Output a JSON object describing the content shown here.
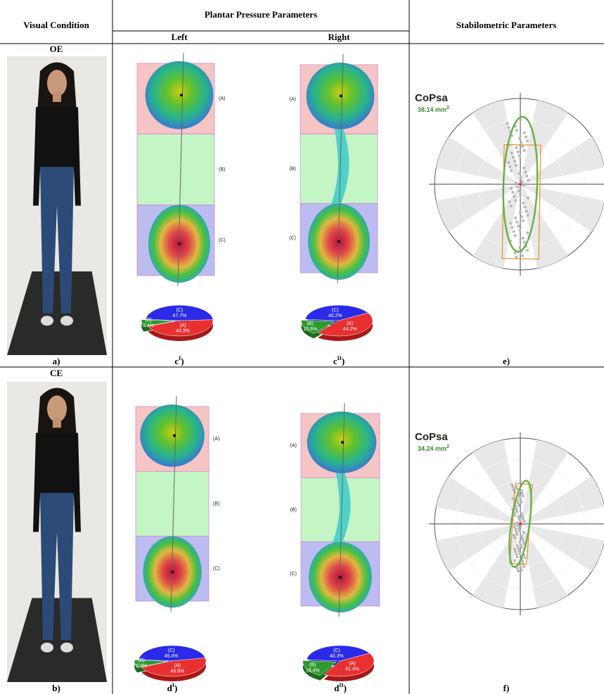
{
  "header": {
    "visual_condition": "Visual Condition",
    "plantar": "Plantar Pressure Parameters",
    "left": "Left",
    "right": "Right",
    "stabilometric": "Stabilometric Parameters"
  },
  "rows": [
    {
      "condition": "OE",
      "photo_label": "a)",
      "feet": [
        {
          "regions": [
            "(A)",
            "(B)",
            "(C)"
          ],
          "pie": [
            {
              "name": "(C)",
              "value": 47.7,
              "value_label": "47.7%"
            },
            {
              "name": "(A)",
              "value": 44.9,
              "value_label": "44.9%"
            },
            {
              "name": "(B)",
              "value": 7.4,
              "value_label": "7.4%"
            }
          ],
          "label": {
            "letter": "c",
            "sup": "I",
            "close": ")"
          }
        },
        {
          "regions": [
            "(A)",
            "(B)",
            "(C)"
          ],
          "pie": [
            {
              "name": "(C)",
              "value": 40.2,
              "value_label": "40.2%"
            },
            {
              "name": "(A)",
              "value": 44.2,
              "value_label": "44.2%"
            },
            {
              "name": "(B)",
              "value": 15.6,
              "value_label": "15.6%"
            }
          ],
          "label": {
            "letter": "c",
            "sup": "II",
            "close": ")"
          }
        }
      ],
      "stabilometry": {
        "title": "CoPsa",
        "value": "38.14 mm",
        "sup": "2",
        "label": "e)"
      }
    },
    {
      "condition": "CE",
      "photo_label": "b)",
      "feet": [
        {
          "regions": [
            "(A)",
            "(B)",
            "(C)"
          ],
          "pie": [
            {
              "name": "(C)",
              "value": 45.4,
              "value_label": "45.4%"
            },
            {
              "name": "(A)",
              "value": 46.6,
              "value_label": "46.6%"
            },
            {
              "name": "(B)",
              "value": 8,
              "value_label": "8.0%"
            }
          ],
          "label": {
            "letter": "d",
            "sup": "I",
            "close": ")"
          }
        },
        {
          "regions": [
            "(A)",
            "(B)",
            "(C)"
          ],
          "pie": [
            {
              "name": "(C)",
              "value": 40.3,
              "value_label": "40.3%"
            },
            {
              "name": "(A)",
              "value": 41.4,
              "value_label": "41.4%"
            },
            {
              "name": "(B)",
              "value": 18.4,
              "value_label": "18.4%"
            }
          ],
          "label": {
            "letter": "d",
            "sup": "II",
            "close": ")"
          }
        }
      ],
      "stabilometry": {
        "title": "CoPsa",
        "value": "34.24 mm",
        "sup": "2",
        "label": "f)"
      }
    }
  ]
}
